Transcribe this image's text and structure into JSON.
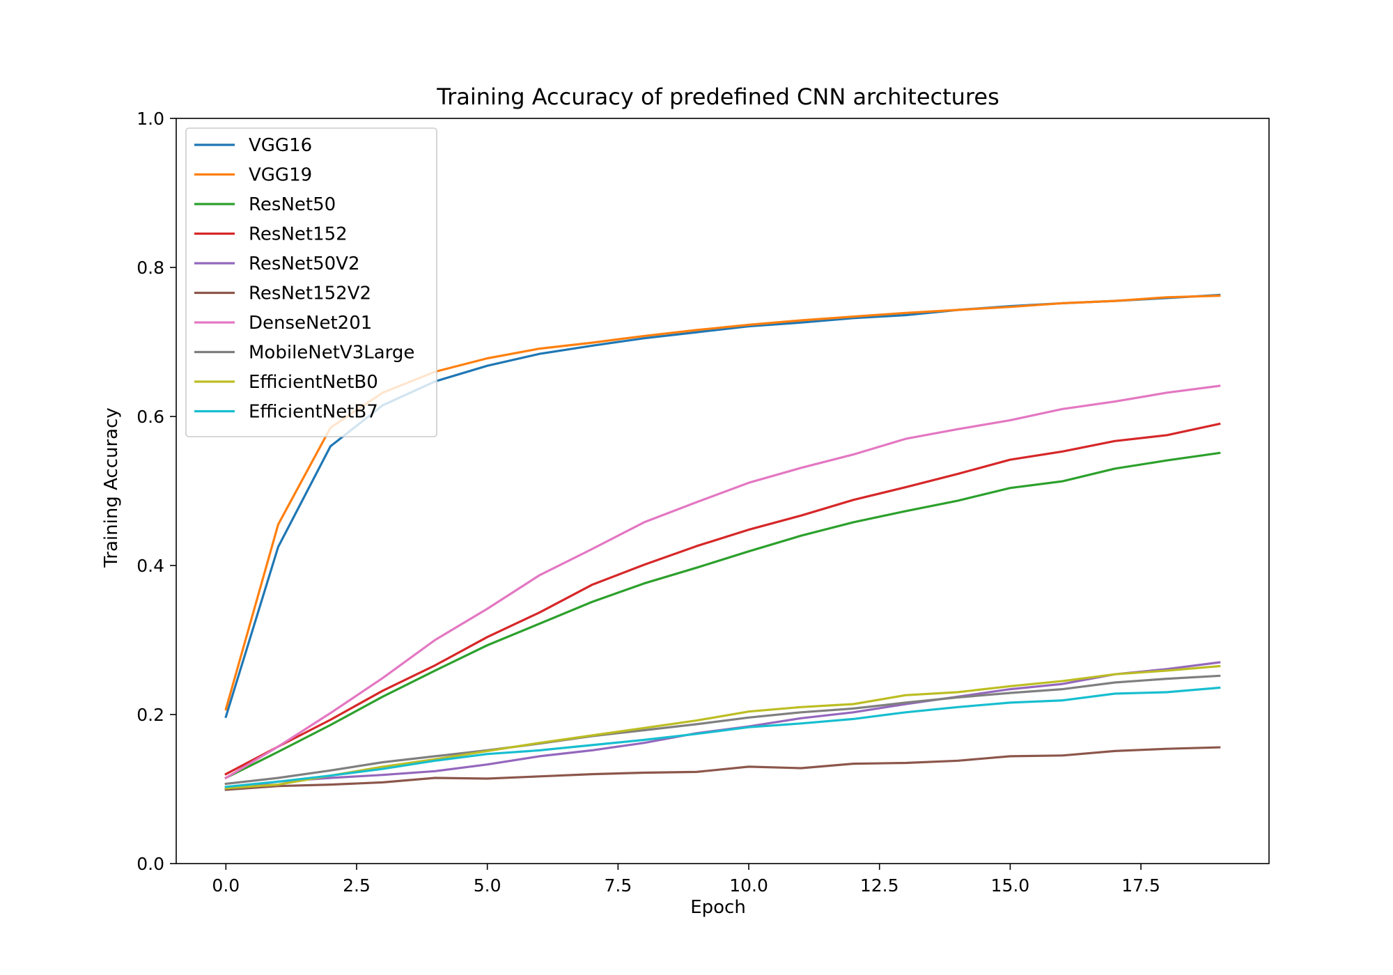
{
  "chart_data": {
    "type": "line",
    "title": "Training Accuracy of predefined CNN architectures",
    "xlabel": "Epoch",
    "ylabel": "Training Accuracy",
    "xlim": [
      -0.95,
      19.95
    ],
    "ylim": [
      0.0,
      1.0
    ],
    "xticks": [
      0,
      2.5,
      5,
      7.5,
      10,
      12.5,
      15,
      17.5
    ],
    "xtick_labels": [
      "0.0",
      "2.5",
      "5.0",
      "7.5",
      "10.0",
      "12.5",
      "15.0",
      "17.5"
    ],
    "yticks": [
      0,
      0.2,
      0.4,
      0.6,
      0.8,
      1.0
    ],
    "ytick_labels": [
      "0.0",
      "0.2",
      "0.4",
      "0.6",
      "0.8",
      "1.0"
    ],
    "grid": false,
    "legend_position": "upper-left",
    "x": [
      0,
      1,
      2,
      3,
      4,
      5,
      6,
      7,
      8,
      9,
      10,
      11,
      12,
      13,
      14,
      15,
      16,
      17,
      18,
      19
    ],
    "series": [
      {
        "name": "VGG16",
        "color": "#1f77b4",
        "values": [
          0.197,
          0.425,
          0.56,
          0.615,
          0.647,
          0.668,
          0.684,
          0.695,
          0.705,
          0.713,
          0.721,
          0.726,
          0.732,
          0.736,
          0.743,
          0.748,
          0.752,
          0.755,
          0.759,
          0.763
        ]
      },
      {
        "name": "VGG19",
        "color": "#ff7f0e",
        "values": [
          0.207,
          0.455,
          0.585,
          0.632,
          0.66,
          0.678,
          0.691,
          0.699,
          0.708,
          0.716,
          0.723,
          0.729,
          0.734,
          0.739,
          0.743,
          0.747,
          0.752,
          0.755,
          0.76,
          0.762
        ]
      },
      {
        "name": "ResNet50",
        "color": "#2ca02c",
        "values": [
          0.115,
          0.15,
          0.186,
          0.224,
          0.259,
          0.293,
          0.322,
          0.351,
          0.376,
          0.397,
          0.419,
          0.44,
          0.458,
          0.473,
          0.487,
          0.504,
          0.513,
          0.53,
          0.541,
          0.551
        ]
      },
      {
        "name": "ResNet152",
        "color": "#d62728",
        "values": [
          0.12,
          0.157,
          0.193,
          0.232,
          0.266,
          0.304,
          0.337,
          0.374,
          0.401,
          0.426,
          0.448,
          0.467,
          0.488,
          0.505,
          0.523,
          0.542,
          0.553,
          0.567,
          0.575,
          0.59
        ]
      },
      {
        "name": "ResNet50V2",
        "color": "#9467bd",
        "values": [
          0.1,
          0.11,
          0.115,
          0.119,
          0.124,
          0.133,
          0.144,
          0.152,
          0.162,
          0.175,
          0.184,
          0.195,
          0.203,
          0.214,
          0.224,
          0.234,
          0.241,
          0.254,
          0.261,
          0.27
        ]
      },
      {
        "name": "ResNet152V2",
        "color": "#8c564b",
        "values": [
          0.099,
          0.104,
          0.106,
          0.109,
          0.115,
          0.114,
          0.117,
          0.12,
          0.122,
          0.123,
          0.13,
          0.128,
          0.134,
          0.135,
          0.138,
          0.144,
          0.145,
          0.151,
          0.154,
          0.156
        ]
      },
      {
        "name": "DenseNet201",
        "color": "#e377c2",
        "values": [
          0.115,
          0.157,
          0.202,
          0.249,
          0.3,
          0.342,
          0.387,
          0.422,
          0.458,
          0.485,
          0.511,
          0.531,
          0.549,
          0.57,
          0.583,
          0.595,
          0.61,
          0.62,
          0.632,
          0.641
        ]
      },
      {
        "name": "MobileNetV3Large",
        "color": "#7f7f7f",
        "values": [
          0.107,
          0.115,
          0.125,
          0.136,
          0.144,
          0.152,
          0.161,
          0.171,
          0.179,
          0.187,
          0.196,
          0.203,
          0.208,
          0.216,
          0.223,
          0.229,
          0.234,
          0.243,
          0.248,
          0.252
        ]
      },
      {
        "name": "EfficientNetB0",
        "color": "#bcbd22",
        "values": [
          0.101,
          0.106,
          0.118,
          0.13,
          0.14,
          0.151,
          0.162,
          0.172,
          0.182,
          0.192,
          0.204,
          0.21,
          0.214,
          0.226,
          0.23,
          0.238,
          0.245,
          0.254,
          0.259,
          0.265
        ]
      },
      {
        "name": "EfficientNetB7",
        "color": "#17becf",
        "values": [
          0.103,
          0.11,
          0.118,
          0.127,
          0.138,
          0.147,
          0.152,
          0.159,
          0.166,
          0.174,
          0.183,
          0.188,
          0.194,
          0.203,
          0.21,
          0.216,
          0.219,
          0.228,
          0.23,
          0.236
        ]
      }
    ]
  }
}
